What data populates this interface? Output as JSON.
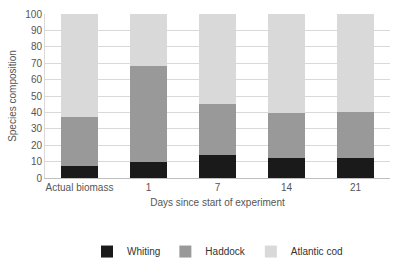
{
  "chart_data": {
    "type": "bar",
    "stacked": true,
    "x_label": "Days since start of experiment",
    "y_label": "Species composition",
    "categories": [
      "Actual biomass",
      "1",
      "7",
      "14",
      "21"
    ],
    "series": [
      {
        "name": "Whiting",
        "color": "#1a1a1a",
        "values": [
          7.5,
          9.5,
          14,
          12.5,
          12.5
        ]
      },
      {
        "name": "Haddock",
        "color": "#999999",
        "values": [
          30,
          59,
          31,
          27,
          28
        ]
      },
      {
        "name": "Atlantic cod",
        "color": "#d9d9d9",
        "values": [
          62.5,
          31.5,
          55,
          60.5,
          59.5
        ]
      }
    ],
    "ylim": [
      0,
      100
    ],
    "yticks": [
      0,
      10,
      20,
      30,
      40,
      50,
      60,
      70,
      80,
      90,
      100
    ],
    "grid": true,
    "legend": "bottom"
  }
}
